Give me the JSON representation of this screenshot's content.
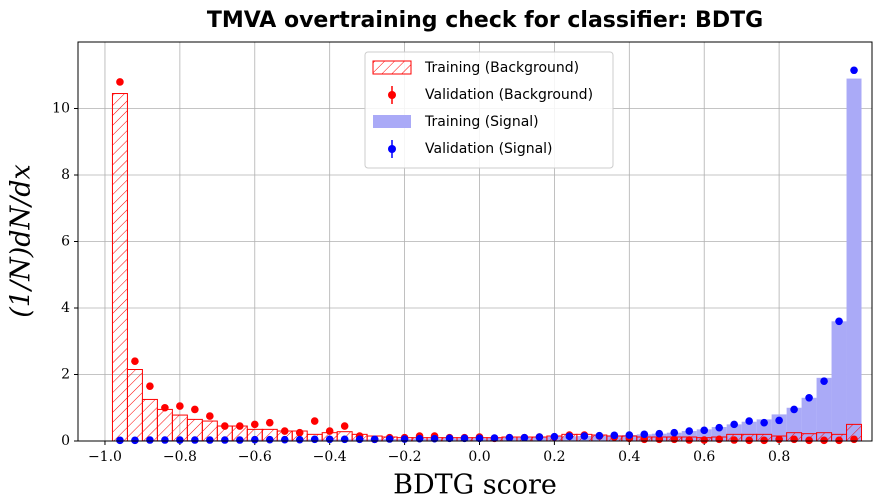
{
  "chart_data": {
    "type": "histogram",
    "title": "TMVA overtraining check for classifier: BDTG",
    "xlabel": "BDTG score",
    "ylabel": "(1/N)dN/dx",
    "bins": [
      -0.98,
      -0.94,
      -0.9,
      -0.86,
      -0.82,
      -0.78,
      -0.74,
      -0.7,
      -0.66,
      -0.62,
      -0.58,
      -0.54,
      -0.5,
      -0.46,
      -0.42,
      -0.38,
      -0.34,
      -0.3,
      -0.26,
      -0.22,
      -0.18,
      -0.14,
      -0.1,
      -0.06,
      -0.02,
      0.02,
      0.06,
      0.1,
      0.14,
      0.18,
      0.22,
      0.26,
      0.3,
      0.34,
      0.38,
      0.42,
      0.46,
      0.5,
      0.54,
      0.58,
      0.62,
      0.66,
      0.7,
      0.74,
      0.78,
      0.82,
      0.86,
      0.9,
      0.94,
      0.98,
      1.02
    ],
    "series": [
      {
        "name": "Training (Background)",
        "style": "hatch",
        "color": "#ff0000",
        "values": [
          10.45,
          2.15,
          1.25,
          0.95,
          0.78,
          0.65,
          0.6,
          0.45,
          0.45,
          0.35,
          0.35,
          0.3,
          0.3,
          0.2,
          0.25,
          0.28,
          0.2,
          0.15,
          0.12,
          0.1,
          0.1,
          0.1,
          0.1,
          0.1,
          0.1,
          0.1,
          0.12,
          0.12,
          0.12,
          0.15,
          0.2,
          0.2,
          0.18,
          0.15,
          0.15,
          0.12,
          0.12,
          0.12,
          0.12,
          0.1,
          0.12,
          0.2,
          0.2,
          0.2,
          0.15,
          0.25,
          0.22,
          0.25,
          0.2,
          0.5
        ]
      },
      {
        "name": "Validation (Background)",
        "style": "points",
        "color": "#ff0000",
        "values": [
          10.8,
          2.4,
          1.65,
          1.0,
          1.05,
          0.95,
          0.75,
          0.45,
          0.45,
          0.5,
          0.55,
          0.3,
          0.25,
          0.6,
          0.3,
          0.45,
          0.15,
          0.05,
          0.1,
          0.1,
          0.15,
          0.15,
          0.1,
          0.1,
          0.12,
          0.08,
          0.1,
          0.1,
          0.12,
          0.12,
          0.18,
          0.18,
          0.15,
          0.12,
          0.08,
          0.05,
          0.05,
          0.05,
          0.03,
          0.03,
          0.05,
          0.03,
          0.02,
          0.02,
          0.05,
          0.05,
          0.02,
          0.02,
          0.02,
          0.05
        ]
      },
      {
        "name": "Training (Signal)",
        "style": "fill",
        "color": "#aaaaf7",
        "values": [
          0.02,
          0.02,
          0.03,
          0.03,
          0.03,
          0.03,
          0.03,
          0.03,
          0.04,
          0.04,
          0.04,
          0.04,
          0.04,
          0.05,
          0.05,
          0.05,
          0.05,
          0.05,
          0.06,
          0.06,
          0.07,
          0.07,
          0.08,
          0.08,
          0.08,
          0.09,
          0.1,
          0.1,
          0.12,
          0.13,
          0.14,
          0.15,
          0.16,
          0.17,
          0.18,
          0.2,
          0.22,
          0.25,
          0.3,
          0.35,
          0.42,
          0.5,
          0.58,
          0.65,
          0.8,
          1.0,
          1.3,
          1.9,
          3.6,
          10.9
        ]
      },
      {
        "name": "Validation (Signal)",
        "style": "points",
        "color": "#0000ff",
        "values": [
          0.02,
          0.02,
          0.03,
          0.03,
          0.03,
          0.03,
          0.03,
          0.03,
          0.03,
          0.04,
          0.04,
          0.04,
          0.04,
          0.05,
          0.05,
          0.05,
          0.05,
          0.05,
          0.06,
          0.06,
          0.07,
          0.07,
          0.08,
          0.08,
          0.08,
          0.09,
          0.1,
          0.1,
          0.12,
          0.13,
          0.14,
          0.15,
          0.16,
          0.17,
          0.18,
          0.2,
          0.22,
          0.25,
          0.3,
          0.32,
          0.4,
          0.5,
          0.6,
          0.55,
          0.62,
          0.95,
          1.3,
          1.8,
          3.6,
          11.15
        ]
      }
    ],
    "draw_order": [
      2,
      0,
      1,
      3
    ],
    "xlim": [
      -1.072,
      1.048
    ],
    "ylim": [
      0,
      12
    ],
    "xticks": [
      {
        "value": -1.0,
        "label": "−1.0"
      },
      {
        "value": -0.8,
        "label": "−0.8"
      },
      {
        "value": -0.6,
        "label": "−0.6"
      },
      {
        "value": -0.4,
        "label": "−0.4"
      },
      {
        "value": -0.2,
        "label": "−0.2"
      },
      {
        "value": 0,
        "label": "0.0"
      },
      0.2,
      0.4,
      0.6,
      0.8
    ],
    "yticks": [
      0,
      2,
      4,
      6,
      8,
      10
    ],
    "grid": true,
    "legend": "upper center"
  }
}
